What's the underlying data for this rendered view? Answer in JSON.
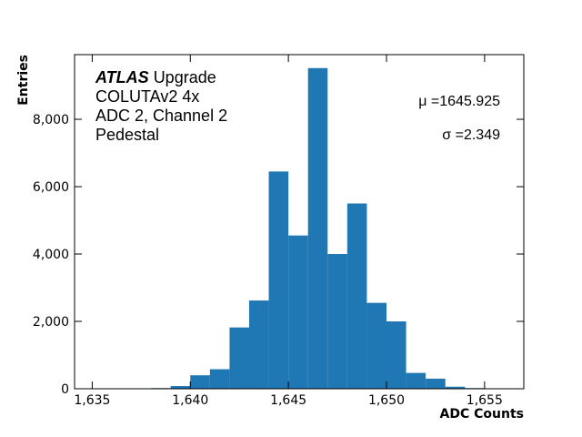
{
  "chart_data": {
    "type": "histogram",
    "xlabel": "ADC Counts",
    "ylabel": "Entries",
    "bins": [
      1638,
      1639,
      1640,
      1641,
      1642,
      1643,
      1644,
      1645,
      1646,
      1647,
      1648,
      1649,
      1650,
      1651,
      1652,
      1653,
      1654,
      1655
    ],
    "values": [
      20,
      80,
      400,
      580,
      1820,
      2620,
      6450,
      4550,
      9520,
      4000,
      5500,
      2550,
      2000,
      470,
      300,
      60,
      20
    ],
    "color": "#1f77b4",
    "xlim": [
      1634.1,
      1657.0
    ],
    "ylim": [
      0,
      9920
    ],
    "xticks": [
      {
        "value": 1635,
        "label": "1,635"
      },
      {
        "value": 1640,
        "label": "1,640"
      },
      {
        "value": 1645,
        "label": "1,645"
      },
      {
        "value": 1650,
        "label": "1,650"
      },
      {
        "value": 1655,
        "label": "1,655"
      }
    ],
    "yticks": [
      0,
      {
        "value": 2000,
        "label": "2,000"
      },
      {
        "value": 4000,
        "label": "4,000"
      },
      {
        "value": 6000,
        "label": "6,000"
      },
      {
        "value": 8000,
        "label": "8,000"
      }
    ],
    "annotations": {
      "experiment": "ATLAS",
      "experiment_suffix": "Upgrade",
      "lines": [
        "COLUTAv2 4x",
        "ADC 2, Channel 2",
        "Pedestal"
      ],
      "stats": [
        "μ =1645.925",
        "σ =2.349"
      ]
    }
  }
}
